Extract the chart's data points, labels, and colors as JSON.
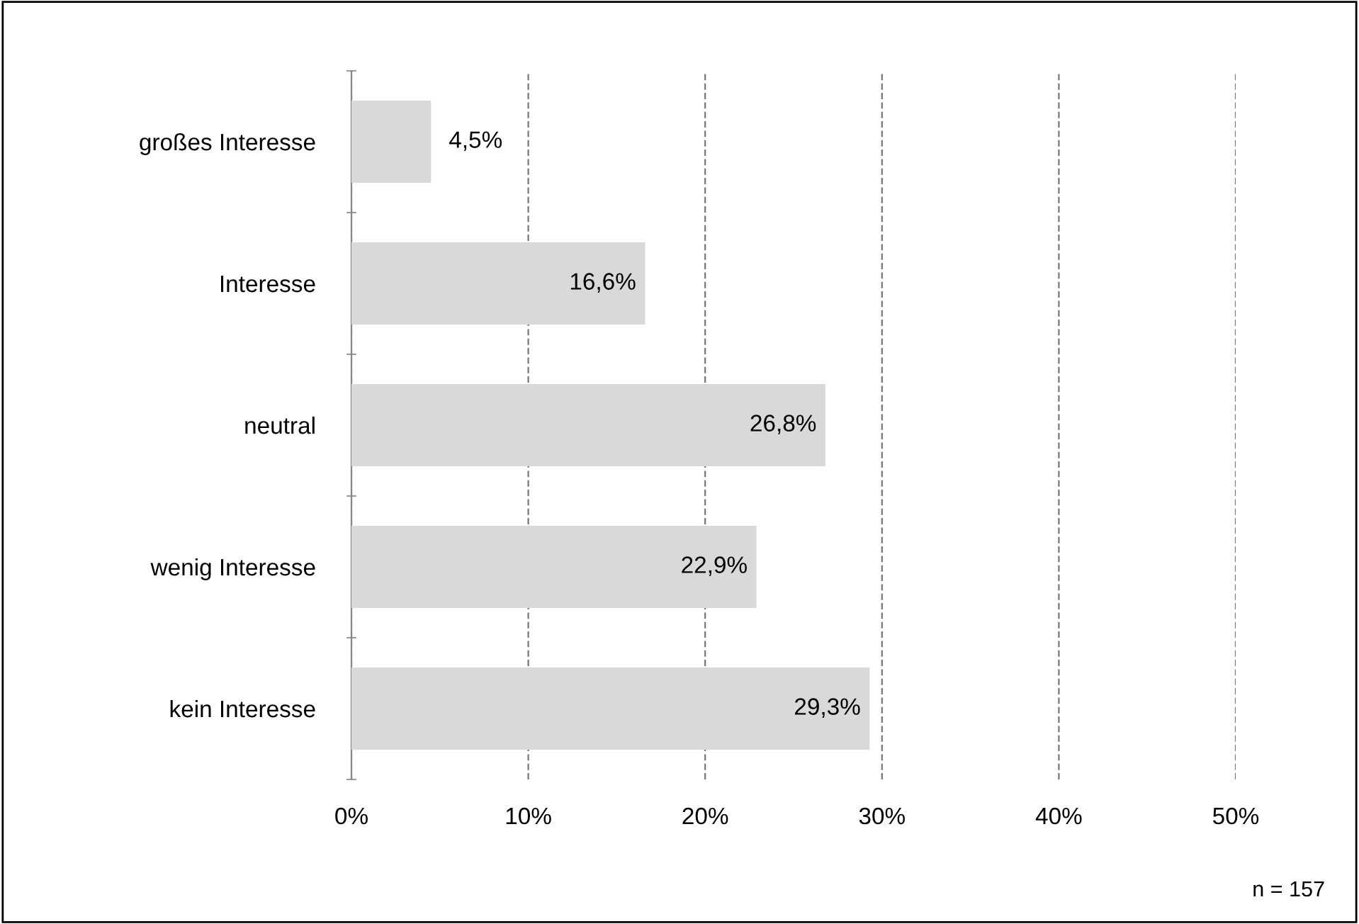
{
  "chart_data": {
    "type": "bar",
    "orientation": "horizontal",
    "categories": [
      "großes Interesse",
      "Interesse",
      "neutral",
      "wenig Interesse",
      "kein Interesse"
    ],
    "values": [
      4.5,
      16.6,
      26.8,
      22.9,
      29.3
    ],
    "value_labels": [
      "4,5%",
      "16,6%",
      "26,8%",
      "22,9%",
      "29,3%"
    ],
    "color": "#d9d9d9",
    "xlim": [
      0,
      50
    ],
    "xticks": [
      {
        "value": 0,
        "label": "0%"
      },
      {
        "value": 10,
        "label": "10%"
      },
      {
        "value": 20,
        "label": "20%"
      },
      {
        "value": 30,
        "label": "30%"
      },
      {
        "value": 40,
        "label": "40%"
      },
      {
        "value": 50,
        "label": "50%"
      }
    ],
    "grid": "x",
    "line_style": "dashed",
    "annotations": [
      "n = 157"
    ]
  }
}
